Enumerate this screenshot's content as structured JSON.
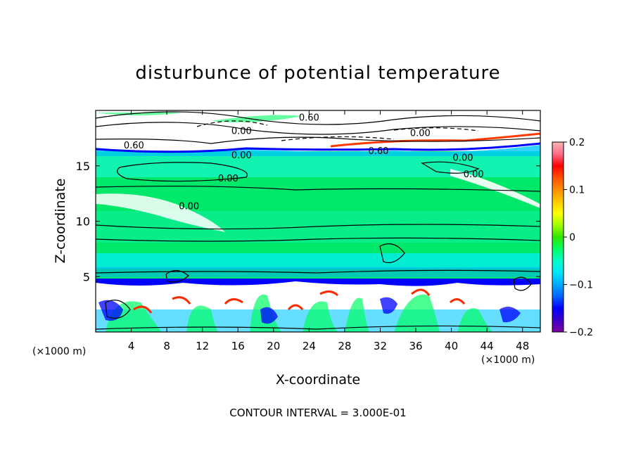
{
  "chart_data": {
    "type": "heatmap",
    "title": "disturbunce of potential temperature",
    "xlabel": "X-coordinate",
    "ylabel": "Z-coordinate",
    "x_unit": "(×1000 m)",
    "y_unit": "(×1000 m)",
    "xlim": [
      0,
      50
    ],
    "ylim": [
      0,
      20
    ],
    "x_ticks": [
      4,
      8,
      12,
      16,
      20,
      24,
      28,
      32,
      36,
      40,
      44,
      48
    ],
    "y_ticks": [
      5,
      10,
      15
    ],
    "colorbar": {
      "min": -0.2,
      "max": 0.2,
      "tick_values": [
        0.2,
        0.1,
        0,
        -0.1,
        -0.2
      ],
      "tick_labels": [
        "0.2",
        "0.1",
        "0",
        "−0.1",
        "−0.2"
      ],
      "colors": [
        "#7f00a0",
        "#3c00c8",
        "#0000ff",
        "#0064ff",
        "#00aaff",
        "#00e6ff",
        "#00ffc8",
        "#00ff64",
        "#32e600",
        "#a0ff00",
        "#ffff00",
        "#ffc800",
        "#ff8c00",
        "#ff5000",
        "#ff0000",
        "#ff6e8c",
        "#ffb4b4"
      ]
    },
    "contour_labels": [
      {
        "text": "0.60",
        "x": 24.0,
        "z": 19.2
      },
      {
        "text": "0.00",
        "x": 16.4,
        "z": 18.0
      },
      {
        "text": "0.60",
        "x": 4.3,
        "z": 16.7
      },
      {
        "text": "0.00",
        "x": 16.4,
        "z": 15.8
      },
      {
        "text": "0.00",
        "x": 14.9,
        "z": 13.7
      },
      {
        "text": "0.00",
        "x": 10.5,
        "z": 11.2
      },
      {
        "text": "0.60",
        "x": 31.8,
        "z": 16.2
      },
      {
        "text": "0.00",
        "x": 36.5,
        "z": 17.8
      },
      {
        "text": "0.00",
        "x": 41.3,
        "z": 15.6
      },
      {
        "text": "0.00",
        "x": 42.5,
        "z": 14.1
      }
    ],
    "footer": "CONTOUR INTERVAL = 3.000E-01"
  }
}
